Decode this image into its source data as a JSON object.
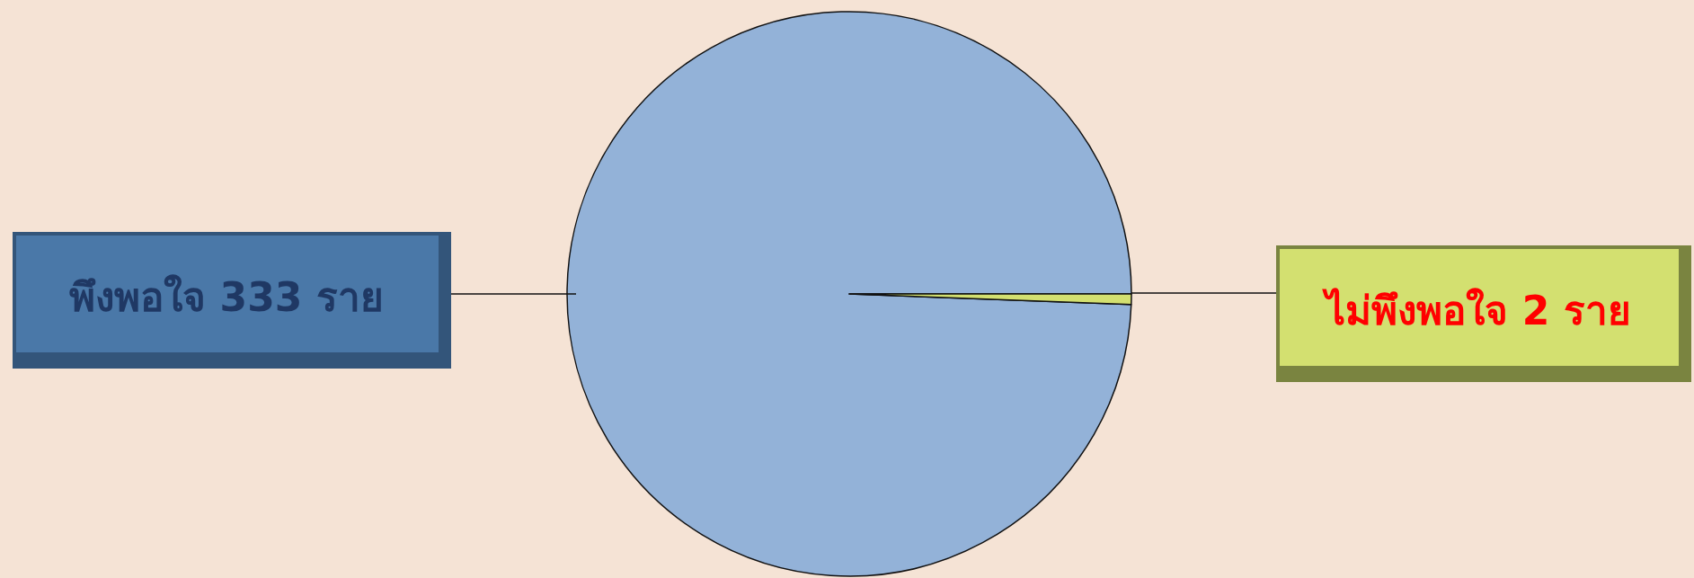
{
  "chart_data": {
    "type": "pie",
    "categories": [
      "พึงพอใจ 333 ราย",
      "ไม่พึงพอใจ 2 ราย"
    ],
    "values": [
      333,
      2
    ],
    "colors": [
      "#93b2d8",
      "#d3e070"
    ]
  }
}
